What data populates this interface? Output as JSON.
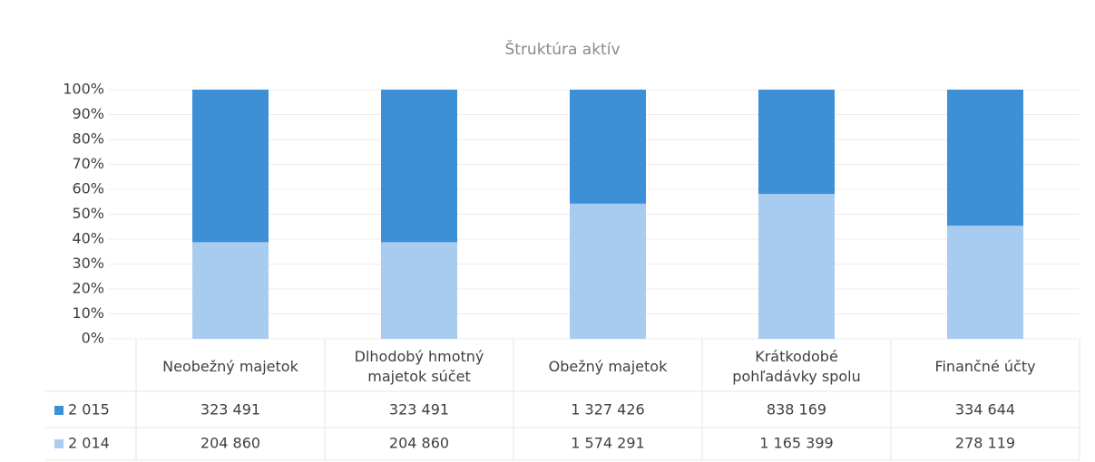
{
  "chart_data": {
    "type": "stacked-percent-bar",
    "title": "Štruktúra aktív",
    "categories": [
      "Neobežný majetok",
      "Dlhodobý hmotný majetok súčet",
      "Obežný majetok",
      "Krátkodobé pohľadávky spolu",
      "Finančné účty"
    ],
    "series": [
      {
        "name": "2 015",
        "color": "#3d8fd6",
        "values": [
          323491,
          323491,
          1327426,
          838169,
          334644
        ],
        "value_labels": [
          "323 491",
          "323 491",
          "1 327 426",
          "838 169",
          "334 644"
        ]
      },
      {
        "name": "2 014",
        "color": "#a8cbf0",
        "values": [
          204860,
          204860,
          1574291,
          1165399,
          278119
        ],
        "value_labels": [
          "204 860",
          "204 860",
          "1 574 291",
          "1 165 399",
          "278 119"
        ]
      }
    ],
    "ylim": [
      0,
      100
    ],
    "yticks": [
      {
        "value": 0,
        "label": "0%"
      },
      {
        "value": 10,
        "label": "10%"
      },
      {
        "value": 20,
        "label": "20%"
      },
      {
        "value": 30,
        "label": "30%"
      },
      {
        "value": 40,
        "label": "40%"
      },
      {
        "value": 50,
        "label": "50%"
      },
      {
        "value": 60,
        "label": "60%"
      },
      {
        "value": 70,
        "label": "70%"
      },
      {
        "value": 80,
        "label": "80%"
      },
      {
        "value": 90,
        "label": "90%"
      },
      {
        "value": 100,
        "label": "100%"
      }
    ],
    "grid": true
  }
}
